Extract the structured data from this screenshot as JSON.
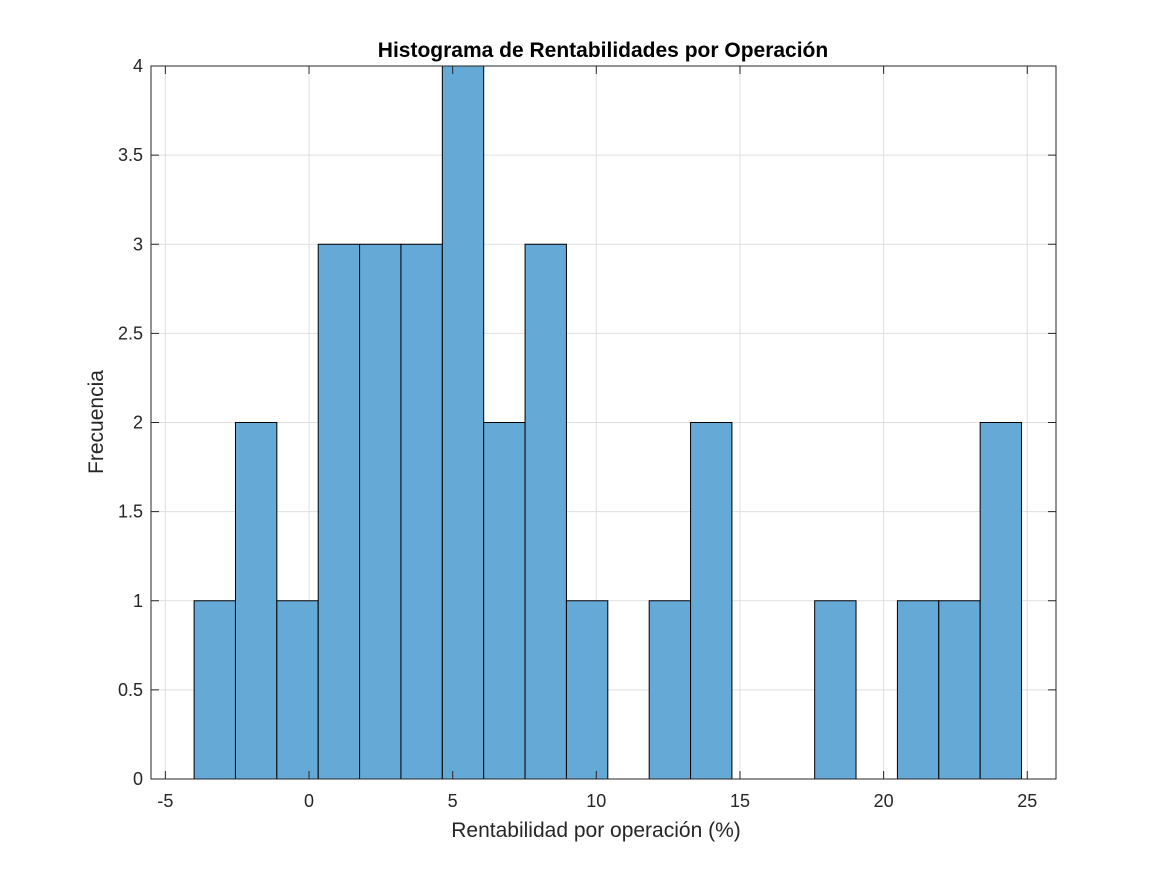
{
  "chart_data": {
    "type": "bar",
    "title": "Histograma de Rentabilidades por Operación",
    "xlabel": "Rentabilidad por operación (%)",
    "ylabel": "Frecuencia",
    "xlim": [
      -5.5,
      26.0
    ],
    "ylim": [
      0,
      4
    ],
    "xticks": [
      -5,
      0,
      5,
      10,
      15,
      20,
      25
    ],
    "xtick_labels": [
      "-5",
      "0",
      "5",
      "10",
      "15",
      "20",
      "25"
    ],
    "yticks": [
      0,
      0.5,
      1,
      1.5,
      2,
      2.5,
      3,
      3.5,
      4
    ],
    "ytick_labels": [
      "0",
      "0.5",
      "1",
      "1.5",
      "2",
      "2.5",
      "3",
      "3.5",
      "4"
    ],
    "grid": true,
    "bin_edges": [
      -4.0,
      -2.56,
      -1.12,
      0.32,
      1.76,
      3.2,
      4.64,
      6.08,
      7.52,
      8.96,
      10.4,
      11.84,
      13.28,
      14.72,
      16.16,
      17.6,
      19.04,
      20.48,
      21.92,
      23.36,
      24.8
    ],
    "counts": [
      1,
      2,
      1,
      3,
      3,
      3,
      4,
      2,
      3,
      1,
      0,
      1,
      2,
      0,
      0,
      1,
      0,
      1,
      1,
      2
    ],
    "colors": {
      "bar_fill": "#65a9d7",
      "bar_edge": "#000000",
      "grid": "#dfdfdf",
      "axis": "#262626"
    }
  }
}
